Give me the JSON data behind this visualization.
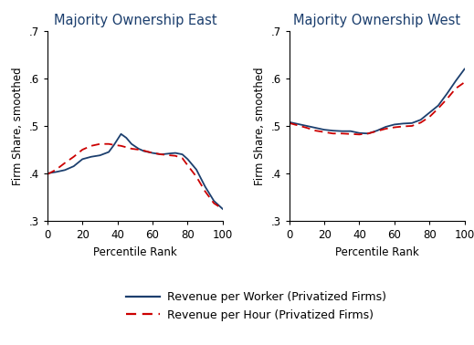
{
  "title_left": "Majority Ownership East",
  "title_right": "Majority Ownership West",
  "xlabel": "Percentile Rank",
  "ylabel": "Firm Share, smoothed",
  "xlim": [
    0,
    100
  ],
  "ylim": [
    0.3,
    0.7
  ],
  "yticks": [
    0.3,
    0.4,
    0.5,
    0.6,
    0.7
  ],
  "ytick_labels": [
    ".3",
    ".4",
    ".5",
    ".6",
    ".7"
  ],
  "xticks": [
    0,
    20,
    40,
    60,
    80,
    100
  ],
  "legend_entries": [
    "Revenue per Worker (Privatized Firms)",
    "Revenue per Hour (Privatized Firms)"
  ],
  "solid_color": "#1c3f6e",
  "dashed_color": "#cc0000",
  "east_solid_x": [
    0,
    5,
    10,
    15,
    20,
    25,
    30,
    35,
    38,
    42,
    45,
    48,
    52,
    55,
    60,
    65,
    70,
    73,
    77,
    80,
    85,
    90,
    95,
    100
  ],
  "east_solid_y": [
    0.4,
    0.403,
    0.407,
    0.415,
    0.43,
    0.435,
    0.438,
    0.445,
    0.46,
    0.483,
    0.475,
    0.462,
    0.452,
    0.447,
    0.443,
    0.44,
    0.442,
    0.443,
    0.44,
    0.43,
    0.408,
    0.372,
    0.342,
    0.325
  ],
  "east_dashed_x": [
    0,
    5,
    10,
    15,
    20,
    25,
    30,
    35,
    38,
    42,
    45,
    48,
    52,
    55,
    60,
    65,
    70,
    73,
    77,
    80,
    85,
    90,
    95,
    100
  ],
  "east_dashed_y": [
    0.398,
    0.408,
    0.422,
    0.435,
    0.45,
    0.458,
    0.462,
    0.462,
    0.46,
    0.458,
    0.455,
    0.452,
    0.45,
    0.448,
    0.443,
    0.44,
    0.438,
    0.437,
    0.432,
    0.417,
    0.393,
    0.362,
    0.337,
    0.325
  ],
  "west_solid_x": [
    0,
    5,
    10,
    15,
    20,
    25,
    30,
    35,
    40,
    45,
    50,
    55,
    60,
    65,
    70,
    75,
    80,
    85,
    90,
    95,
    100
  ],
  "west_solid_y": [
    0.508,
    0.504,
    0.5,
    0.496,
    0.492,
    0.49,
    0.489,
    0.489,
    0.485,
    0.484,
    0.49,
    0.498,
    0.503,
    0.505,
    0.506,
    0.513,
    0.528,
    0.543,
    0.568,
    0.595,
    0.62
  ],
  "west_dashed_x": [
    0,
    5,
    10,
    15,
    20,
    25,
    30,
    35,
    40,
    45,
    50,
    55,
    60,
    65,
    70,
    75,
    80,
    85,
    90,
    95,
    100
  ],
  "west_dashed_y": [
    0.506,
    0.501,
    0.496,
    0.49,
    0.487,
    0.484,
    0.484,
    0.483,
    0.482,
    0.484,
    0.489,
    0.494,
    0.497,
    0.499,
    0.5,
    0.507,
    0.519,
    0.537,
    0.557,
    0.579,
    0.592
  ],
  "background_color": "#ffffff",
  "title_fontsize": 10.5,
  "label_fontsize": 8.5,
  "tick_fontsize": 8.5,
  "legend_fontsize": 9,
  "line_width": 1.3
}
